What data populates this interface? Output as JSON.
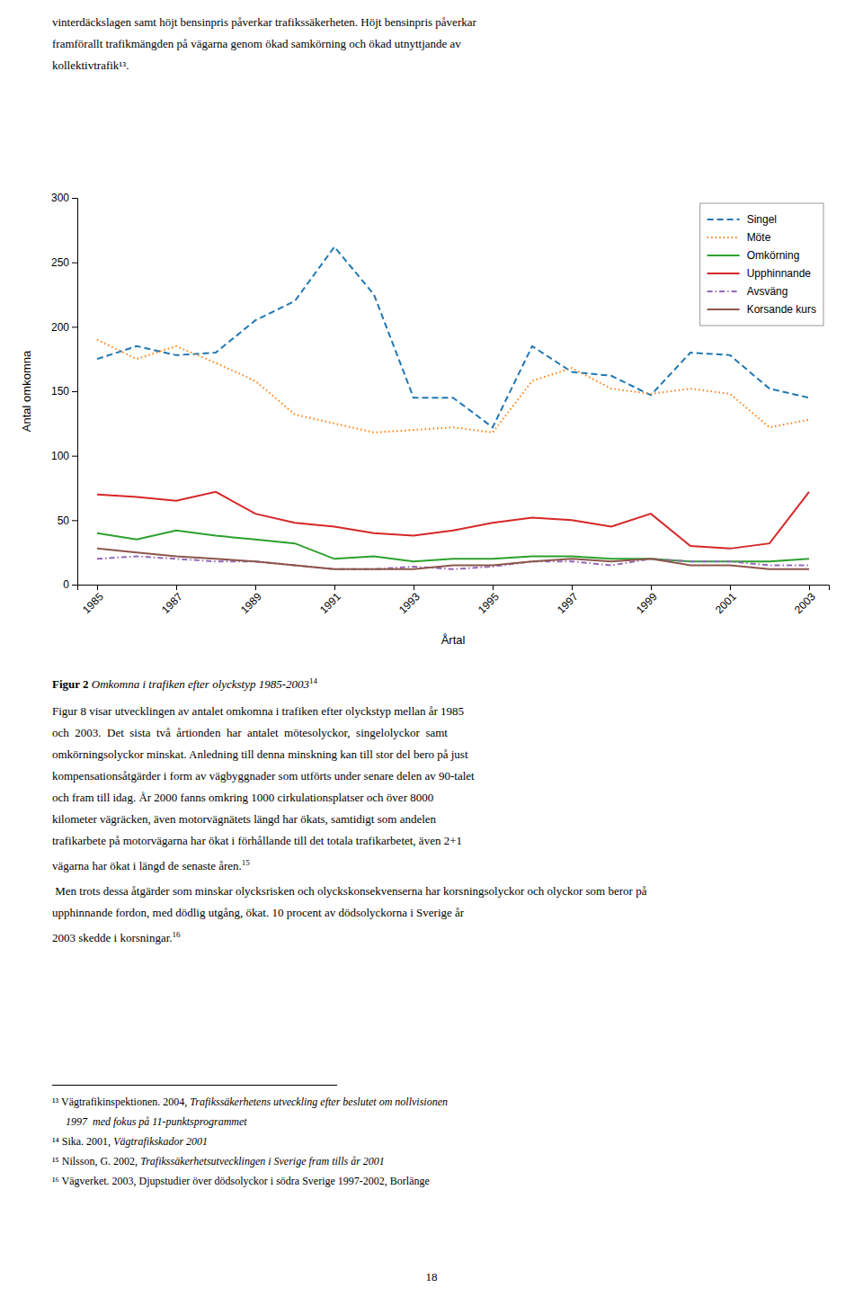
{
  "chart_data": {
    "type": "line",
    "x": [
      1985,
      1986,
      1987,
      1988,
      1989,
      1990,
      1991,
      1992,
      1993,
      1994,
      1995,
      1996,
      1997,
      1998,
      1999,
      2000,
      2001,
      2002,
      2003
    ],
    "series": [
      {
        "name": "Singel",
        "line_style": "dashed",
        "values": [
          175,
          185,
          178,
          180,
          205,
          220,
          262,
          225,
          145,
          145,
          122,
          185,
          165,
          162,
          147,
          180,
          178,
          152,
          145
        ]
      },
      {
        "name": "Möte",
        "line_style": "dotted",
        "values": [
          190,
          175,
          185,
          172,
          158,
          132,
          125,
          118,
          120,
          122,
          118,
          158,
          168,
          152,
          148,
          152,
          148,
          122,
          128
        ]
      },
      {
        "name": "Omkörning",
        "line_style": "solid",
        "values": [
          40,
          35,
          42,
          38,
          35,
          32,
          20,
          22,
          18,
          20,
          20,
          22,
          22,
          20,
          20,
          18,
          18,
          18,
          20
        ]
      },
      {
        "name": "Upphinnande",
        "line_style": "solid",
        "values": [
          70,
          68,
          65,
          72,
          55,
          48,
          45,
          40,
          38,
          42,
          48,
          52,
          50,
          45,
          55,
          30,
          28,
          32,
          72
        ]
      },
      {
        "name": "Avsväng",
        "line_style": "dashdot",
        "values": [
          20,
          22,
          20,
          18,
          18,
          15,
          12,
          12,
          14,
          12,
          14,
          18,
          18,
          15,
          20,
          18,
          18,
          15,
          15
        ]
      },
      {
        "name": "Korsande kurs",
        "line_style": "solid",
        "values": [
          28,
          25,
          22,
          20,
          18,
          15,
          12,
          12,
          12,
          15,
          15,
          18,
          20,
          18,
          20,
          15,
          15,
          12,
          12
        ]
      }
    ],
    "xlabel": "Årtal",
    "ylabel": "Antal omkomna",
    "xlim": [
      1984.5,
      2003.5
    ],
    "xticks": [
      1985,
      1987,
      1989,
      1991,
      1993,
      1995,
      1997,
      1999,
      2001,
      2003
    ],
    "ylim": [
      0,
      300
    ],
    "yticks": [
      0,
      50,
      100,
      150,
      200,
      250,
      300
    ],
    "legend": "upper right",
    "grid": false
  },
  "page": {
    "top_text": [
      "vinterdäckslagen samt höjt bensinpris påverkar trafikssäkerheten. Höjt bensinpris påverkar",
      "framförallt trafikmängden på vägarna genom ökad samkörning och ökad utnyttjande av",
      "kollektivtrafik¹³."
    ],
    "caption": {
      "label": "Figur 2",
      "text": " Omkomna i trafiken efter olyckstyp 1985-2003",
      "note": "14"
    },
    "body": [
      {
        "text": "Figur 8 visar utvecklingen av antalet omkomna i trafiken efter olyckstyp mellan år 1985"
      },
      {
        "text": "och  2003.  Det  sista  två  årtionden  har  antalet  mötesolyckor,  singelolyckor  samt"
      },
      {
        "text": "omkörningsolyckor minskat. Anledning till denna minskning kan till stor del bero på just"
      },
      {
        "text": "kompensationsåtgärder i form av vägbyggnader som utförts under senare delen av 90-talet"
      },
      {
        "text": "och fram till idag. År 2000 fanns omkring 1000 cirkulationsplatser och över 8000"
      },
      {
        "text": "kilometer vägräcken, även motorvägnätets längd har ökats, samtidigt som andelen"
      },
      {
        "text": "trafikarbete på motorvägarna har ökat i förhållande till det totala trafikarbetet, även 2+1"
      },
      {
        "text": "vägarna har ökat i längd de senaste åren.",
        "note": "15"
      }
    ],
    "body2": [
      {
        "text": " Men trots dessa åtgärder som minskar olycksrisken och olyckskonsekvenserna har korsningsolyckor och olyckor som beror på"
      },
      {
        "text": "upphinnande fordon, med dödlig utgång, ökat. 10 procent av dödsolyckorna i Sverige år"
      },
      {
        "text": "2003 skedde i korsningar.",
        "note": "16"
      }
    ],
    "footnotes": [
      [
        {
          "text": "¹³ Vägtrafikinspektionen. 2004, "
        },
        {
          "text": "Trafikssäkerhetens utveckling efter beslutet om nollvisionen",
          "italic": true
        }
      ],
      [
        {
          "text": "     "
        },
        {
          "text": "1997  med fokus på 11-punktsprogrammet",
          "italic": true
        }
      ],
      [
        {
          "text": "¹⁴ Sika. 2001, "
        },
        {
          "text": "Vägtrafikskador 2001",
          "italic": true
        }
      ],
      [
        {
          "text": "¹⁵ Nilsson, G. 2002, "
        },
        {
          "text": "Trafikssäkerhetsutvecklingen i Sverige fram tills år 2001",
          "italic": true
        }
      ],
      [
        {
          "text": "¹⁶ Vägverket. 2003, Djupstudier över dödsolyckor i södra Sverige 1997-2002, Borlänge"
        }
      ]
    ],
    "page_number": "18"
  }
}
